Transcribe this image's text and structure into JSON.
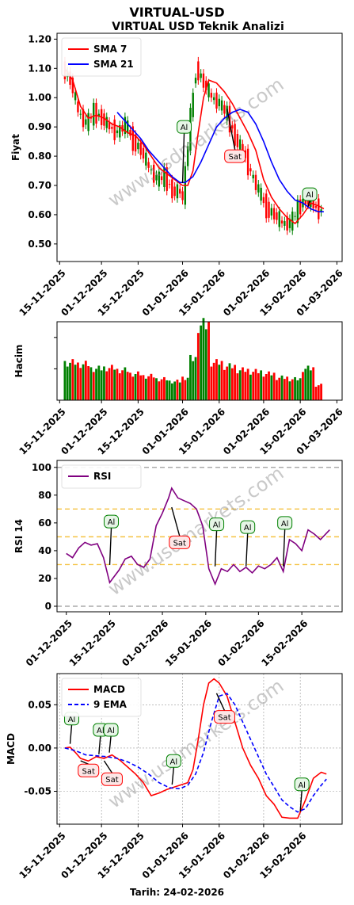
{
  "figure": {
    "title": "VIRTUAL-USD",
    "subtitle": "VIRTUAL USD Teknik Analizi",
    "footer": "Tarih: 24-02-2026",
    "watermark": "www.usdmarkets.com"
  },
  "chart_data": [
    {
      "type": "line",
      "panel": "price",
      "ylabel": "Fiyat",
      "ylim": [
        0.44,
        1.22
      ],
      "yticks": [
        0.5,
        0.6,
        0.7,
        0.8,
        0.9,
        1.0,
        1.1,
        1.2
      ],
      "ytick_labels": [
        "0.50",
        "0.60",
        "0.70",
        "0.80",
        "0.90",
        "1.00",
        "1.10",
        "1.20"
      ],
      "xlim": [
        "2025-11-14",
        "2026-03-03"
      ],
      "xticks": [
        "2025-11-15",
        "2025-12-01",
        "2025-12-15",
        "2026-01-01",
        "2026-01-15",
        "2026-02-01",
        "2026-02-15",
        "2026-03-01"
      ],
      "xtick_labels": [
        "15-11-2025",
        "01-12-2025",
        "15-12-2025",
        "01-01-2026",
        "15-01-2026",
        "01-02-2026",
        "15-02-2026",
        "01-03-2026"
      ],
      "legend": "top-left",
      "grid": false,
      "candle_colors": {
        "up": "#008000",
        "down": "#ff0000"
      },
      "close": {
        "dates": [
          "2025-11-17",
          "2025-11-20",
          "2025-11-23",
          "2025-11-26",
          "2025-11-29",
          "2025-12-02",
          "2025-12-05",
          "2025-12-08",
          "2025-12-11",
          "2025-12-14",
          "2025-12-17",
          "2025-12-20",
          "2025-12-23",
          "2025-12-26",
          "2025-12-29",
          "2026-01-01",
          "2026-01-02",
          "2026-01-04",
          "2026-01-07",
          "2026-01-10",
          "2026-01-13",
          "2026-01-16",
          "2026-01-19",
          "2026-01-22",
          "2026-01-25",
          "2026-01-28",
          "2026-01-31",
          "2026-02-03",
          "2026-02-06",
          "2026-02-09",
          "2026-02-12",
          "2026-02-15",
          "2026-02-18",
          "2026-02-21",
          "2026-02-24"
        ],
        "values": [
          1.1,
          1.06,
          0.95,
          0.91,
          0.95,
          0.93,
          0.9,
          0.88,
          0.91,
          0.85,
          0.82,
          0.76,
          0.72,
          0.73,
          0.68,
          0.68,
          0.65,
          0.85,
          1.1,
          1.05,
          1.0,
          0.98,
          0.94,
          0.86,
          0.82,
          0.74,
          0.68,
          0.62,
          0.6,
          0.57,
          0.57,
          0.62,
          0.66,
          0.63,
          0.61
        ]
      },
      "series": [
        {
          "name": "SMA 7",
          "color": "#ff0000",
          "dates": [
            "2025-11-17",
            "2025-11-20",
            "2025-11-23",
            "2025-11-26",
            "2025-11-29",
            "2025-12-02",
            "2025-12-05",
            "2025-12-08",
            "2025-12-11",
            "2025-12-14",
            "2025-12-17",
            "2025-12-20",
            "2025-12-23",
            "2025-12-26",
            "2025-12-29",
            "2026-01-01",
            "2026-01-03",
            "2026-01-05",
            "2026-01-07",
            "2026-01-09",
            "2026-01-11",
            "2026-01-14",
            "2026-01-17",
            "2026-01-20",
            "2026-01-23",
            "2026-01-26",
            "2026-01-29",
            "2026-02-01",
            "2026-02-04",
            "2026-02-07",
            "2026-02-10",
            "2026-02-13",
            "2026-02-16",
            "2026-02-19",
            "2026-02-22",
            "2026-02-24"
          ],
          "values": [
            1.1,
            1.06,
            0.97,
            0.93,
            0.94,
            0.93,
            0.91,
            0.9,
            0.88,
            0.87,
            0.84,
            0.8,
            0.76,
            0.74,
            0.72,
            0.7,
            0.7,
            0.75,
            0.88,
            1.0,
            1.06,
            1.05,
            1.02,
            0.98,
            0.93,
            0.88,
            0.82,
            0.72,
            0.66,
            0.62,
            0.59,
            0.57,
            0.6,
            0.64,
            0.63,
            0.62
          ]
        },
        {
          "name": "SMA 21",
          "color": "#0000ff",
          "dates": [
            "2025-12-07",
            "2025-12-10",
            "2025-12-13",
            "2025-12-16",
            "2025-12-19",
            "2025-12-22",
            "2025-12-25",
            "2025-12-28",
            "2025-12-31",
            "2026-01-02",
            "2026-01-05",
            "2026-01-08",
            "2026-01-11",
            "2026-01-14",
            "2026-01-17",
            "2026-01-20",
            "2026-01-23",
            "2026-01-26",
            "2026-01-29",
            "2026-02-01",
            "2026-02-04",
            "2026-02-07",
            "2026-02-10",
            "2026-02-13",
            "2026-02-16",
            "2026-02-19",
            "2026-02-22",
            "2026-02-24"
          ],
          "values": [
            0.95,
            0.92,
            0.89,
            0.86,
            0.82,
            0.79,
            0.76,
            0.73,
            0.71,
            0.71,
            0.73,
            0.78,
            0.84,
            0.9,
            0.93,
            0.95,
            0.96,
            0.95,
            0.91,
            0.85,
            0.78,
            0.72,
            0.68,
            0.65,
            0.64,
            0.62,
            0.61,
            0.61
          ]
        }
      ],
      "annotations": [
        {
          "text": "Al",
          "date": "2026-01-01",
          "value": 0.7,
          "label_value": 0.9
        },
        {
          "text": "Sat",
          "date": "2026-01-18",
          "value": 0.97,
          "label_value": 0.8
        },
        {
          "text": "Al",
          "date": "2026-02-18",
          "value": 0.62,
          "label_value": 0.67
        }
      ]
    },
    {
      "type": "bar",
      "panel": "volume",
      "ylabel": "Hacim",
      "xlim": [
        "2025-11-14",
        "2026-03-03"
      ],
      "xticks": [
        "2025-11-15",
        "2025-12-01",
        "2025-12-15",
        "2026-01-01",
        "2026-01-15",
        "2026-02-01",
        "2026-02-15",
        "2026-03-01"
      ],
      "xtick_labels": [
        "15-11-2025",
        "01-12-2025",
        "15-12-2025",
        "01-01-2026",
        "15-01-2026",
        "01-02-2026",
        "15-02-2026",
        "01-03-2026"
      ],
      "bar_colors": {
        "up": "#008000",
        "down": "#ff0000"
      },
      "days": [
        "2025-11-17",
        "2025-11-22",
        "2025-11-27",
        "2025-12-02",
        "2025-12-07",
        "2025-12-12",
        "2025-12-17",
        "2025-12-22",
        "2025-12-27",
        "2026-01-01",
        "2026-01-04",
        "2026-01-07",
        "2026-01-12",
        "2026-01-17",
        "2026-01-22",
        "2026-01-27",
        "2026-02-01",
        "2026-02-06",
        "2026-02-11",
        "2026-02-16",
        "2026-02-21"
      ],
      "values": [
        0.5,
        0.48,
        0.42,
        0.43,
        0.4,
        0.35,
        0.32,
        0.28,
        0.25,
        0.3,
        0.55,
        1.0,
        0.5,
        0.45,
        0.4,
        0.38,
        0.35,
        0.3,
        0.28,
        0.42,
        0.2
      ],
      "direction": [
        "up",
        "down",
        "up",
        "down",
        "down",
        "down",
        "down",
        "down",
        "up",
        "down",
        "up",
        "up",
        "down",
        "down",
        "down",
        "down",
        "down",
        "down",
        "up",
        "up",
        "down"
      ]
    },
    {
      "type": "line",
      "panel": "rsi",
      "ylabel": "RSI 14",
      "ylim": [
        -4,
        105
      ],
      "yticks": [
        0,
        20,
        40,
        60,
        80,
        100
      ],
      "ytick_labels": [
        "0",
        "20",
        "40",
        "60",
        "80",
        "100"
      ],
      "hlines": [
        {
          "value": 100,
          "color": "#aaaaaa"
        },
        {
          "value": 70,
          "color": "#f5c242"
        },
        {
          "value": 50,
          "color": "#f5c242"
        },
        {
          "value": 30,
          "color": "#f5c242"
        },
        {
          "value": 0,
          "color": "#aaaaaa"
        }
      ],
      "xlim": [
        "2025-11-28",
        "2026-02-28"
      ],
      "xticks": [
        "2025-12-01",
        "2025-12-15",
        "2026-01-01",
        "2026-01-15",
        "2026-02-01",
        "2026-02-15"
      ],
      "xtick_labels": [
        "01-12-2025",
        "15-12-2025",
        "01-01-2026",
        "15-01-2026",
        "01-02-2026",
        "15-02-2026"
      ],
      "legend": "top-left",
      "series": [
        {
          "name": "RSI",
          "color": "#800080",
          "dates": [
            "2025-12-01",
            "2025-12-03",
            "2025-12-05",
            "2025-12-07",
            "2025-12-09",
            "2025-12-11",
            "2025-12-13",
            "2025-12-15",
            "2025-12-16",
            "2025-12-18",
            "2025-12-20",
            "2025-12-22",
            "2025-12-24",
            "2025-12-26",
            "2025-12-28",
            "2025-12-30",
            "2026-01-01",
            "2026-01-03",
            "2026-01-04",
            "2026-01-06",
            "2026-01-08",
            "2026-01-10",
            "2026-01-12",
            "2026-01-14",
            "2026-01-16",
            "2026-01-18",
            "2026-01-20",
            "2026-01-22",
            "2026-01-24",
            "2026-01-26",
            "2026-01-28",
            "2026-01-30",
            "2026-02-01",
            "2026-02-03",
            "2026-02-05",
            "2026-02-07",
            "2026-02-09",
            "2026-02-11",
            "2026-02-13",
            "2026-02-15",
            "2026-02-17",
            "2026-02-19",
            "2026-02-21",
            "2026-02-24"
          ],
          "values": [
            38,
            35,
            42,
            46,
            44,
            45,
            35,
            17,
            20,
            26,
            34,
            36,
            30,
            28,
            34,
            58,
            67,
            78,
            85,
            78,
            76,
            74,
            70,
            58,
            27,
            16,
            27,
            25,
            30,
            25,
            28,
            24,
            29,
            27,
            30,
            35,
            25,
            48,
            45,
            40,
            55,
            52,
            48,
            55
          ]
        }
      ],
      "annotations": [
        {
          "text": "Al",
          "date": "2025-12-15",
          "value": 28,
          "label_value": 61
        },
        {
          "text": "Sat",
          "date": "2026-01-04",
          "value": 73,
          "label_value": 46
        },
        {
          "text": "Al",
          "date": "2026-01-18",
          "value": 27,
          "label_value": 59
        },
        {
          "text": "Al",
          "date": "2026-01-28",
          "value": 27,
          "label_value": 57
        },
        {
          "text": "Al",
          "date": "2026-02-09",
          "value": 27,
          "label_value": 60
        }
      ]
    },
    {
      "type": "line",
      "panel": "macd",
      "ylabel": "MACD",
      "ylim": [
        -0.088,
        0.086
      ],
      "yticks": [
        -0.05,
        0.0,
        0.05
      ],
      "ytick_labels": [
        "-0.05",
        "0.00",
        "0.05"
      ],
      "xlim": [
        "2025-11-14",
        "2026-03-03"
      ],
      "xticks": [
        "2025-11-15",
        "2025-12-01",
        "2025-12-15",
        "2026-01-01",
        "2026-01-15",
        "2026-02-01",
        "2026-02-15"
      ],
      "xtick_labels": [
        "15-11-2025",
        "01-12-2025",
        "15-12-2025",
        "01-01-2026",
        "15-01-2026",
        "01-02-2026",
        "15-02-2026"
      ],
      "grid": true,
      "legend": "top-left",
      "series": [
        {
          "name": "MACD",
          "color": "#ff0000",
          "style": "solid",
          "dates": [
            "2025-11-17",
            "2025-11-19",
            "2025-11-21",
            "2025-11-23",
            "2025-11-26",
            "2025-11-29",
            "2025-12-02",
            "2025-12-05",
            "2025-12-08",
            "2025-12-11",
            "2025-12-14",
            "2025-12-17",
            "2025-12-20",
            "2025-12-23",
            "2025-12-26",
            "2025-12-29",
            "2026-01-01",
            "2026-01-03",
            "2026-01-05",
            "2026-01-07",
            "2026-01-09",
            "2026-01-11",
            "2026-01-13",
            "2026-01-15",
            "2026-01-18",
            "2026-01-21",
            "2026-01-24",
            "2026-01-27",
            "2026-01-30",
            "2026-02-02",
            "2026-02-05",
            "2026-02-08",
            "2026-02-11",
            "2026-02-14",
            "2026-02-17",
            "2026-02-20",
            "2026-02-23",
            "2026-02-25"
          ],
          "values": [
            0.0,
            0.001,
            -0.005,
            -0.012,
            -0.015,
            -0.01,
            -0.012,
            -0.008,
            -0.014,
            -0.022,
            -0.03,
            -0.04,
            -0.055,
            -0.052,
            -0.048,
            -0.045,
            -0.042,
            -0.04,
            -0.025,
            0.01,
            0.05,
            0.075,
            0.08,
            0.075,
            0.06,
            0.03,
            0.0,
            -0.02,
            -0.035,
            -0.055,
            -0.065,
            -0.08,
            -0.081,
            -0.081,
            -0.06,
            -0.035,
            -0.028,
            -0.03
          ]
        },
        {
          "name": "9 EMA",
          "color": "#0000ff",
          "style": "dashed",
          "dates": [
            "2025-11-17",
            "2025-11-21",
            "2025-11-25",
            "2025-11-29",
            "2025-12-03",
            "2025-12-07",
            "2025-12-11",
            "2025-12-15",
            "2025-12-19",
            "2025-12-23",
            "2025-12-27",
            "2025-12-31",
            "2026-01-03",
            "2026-01-06",
            "2026-01-09",
            "2026-01-12",
            "2026-01-15",
            "2026-01-18",
            "2026-01-21",
            "2026-01-24",
            "2026-01-27",
            "2026-01-30",
            "2026-02-02",
            "2026-02-05",
            "2026-02-08",
            "2026-02-11",
            "2026-02-14",
            "2026-02-17",
            "2026-02-20",
            "2026-02-23",
            "2026-02-25"
          ],
          "values": [
            0.0,
            -0.003,
            -0.008,
            -0.009,
            -0.01,
            -0.012,
            -0.016,
            -0.022,
            -0.03,
            -0.04,
            -0.046,
            -0.047,
            -0.043,
            -0.03,
            -0.005,
            0.03,
            0.06,
            0.063,
            0.05,
            0.03,
            0.01,
            -0.01,
            -0.03,
            -0.045,
            -0.06,
            -0.068,
            -0.074,
            -0.07,
            -0.055,
            -0.043,
            -0.036
          ]
        }
      ],
      "annotations": [
        {
          "text": "Al",
          "date": "2025-11-19",
          "value": 0.002,
          "label_value": 0.034
        },
        {
          "text": "Sat",
          "date": "2025-11-23",
          "value": -0.012,
          "label_value": -0.026
        },
        {
          "text": "Al",
          "date": "2025-11-30",
          "value": -0.01,
          "label_value": 0.021
        },
        {
          "text": "Sat",
          "date": "2025-12-02",
          "value": -0.012,
          "label_value": -0.036
        },
        {
          "text": "Al",
          "date": "2025-12-04",
          "value": -0.008,
          "label_value": 0.021
        },
        {
          "text": "Al",
          "date": "2025-12-28",
          "value": -0.045,
          "label_value": -0.015
        },
        {
          "text": "Sat",
          "date": "2026-01-14",
          "value": 0.066,
          "label_value": 0.036
        },
        {
          "text": "Al",
          "date": "2026-02-15",
          "value": -0.076,
          "label_value": -0.042
        }
      ]
    }
  ]
}
